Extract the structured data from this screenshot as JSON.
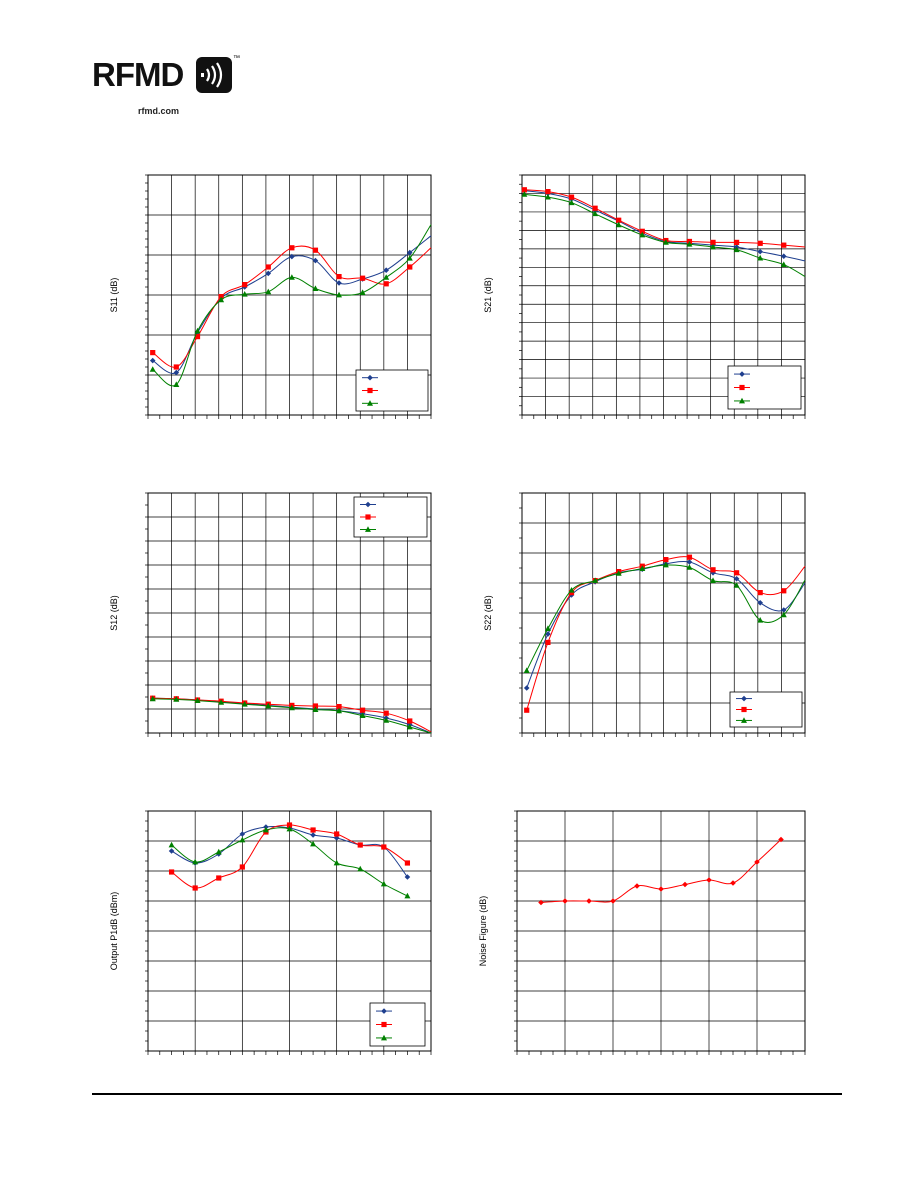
{
  "header": {
    "logo_text": "RFMD",
    "logo_url": "rfmd.com",
    "logo_tm": "™"
  },
  "colors": {
    "series_blue": "#1f3f8f",
    "series_red": "#ff0000",
    "series_green": "#008000",
    "grid": "#000000"
  },
  "chart_data": [
    {
      "id": "s11",
      "type": "line",
      "ylabel": "S11 (dB)",
      "grid": true,
      "legend": "bottom-right",
      "xlim": [
        0,
        12
      ],
      "ylim": [
        -30,
        0
      ],
      "series": [
        {
          "marker": "diamond",
          "color": "#1f3f8f",
          "x": [
            0.2,
            1.2,
            2.1,
            3.1,
            4.1,
            5.1,
            6.1,
            7.1,
            8.1,
            9.1,
            10.1,
            11.1,
            12
          ],
          "y": [
            -23.2,
            -24.7,
            -19.7,
            -15.4,
            -14.0,
            -12.3,
            -10.2,
            -10.7,
            -13.5,
            -13.0,
            -11.9,
            -9.7,
            -7.6
          ]
        },
        {
          "marker": "square",
          "color": "#ff0000",
          "x": [
            0.2,
            1.2,
            2.1,
            3.1,
            4.1,
            5.1,
            6.1,
            7.1,
            8.1,
            9.1,
            10.1,
            11.1,
            12
          ],
          "y": [
            -22.2,
            -24.0,
            -20.2,
            -15.2,
            -13.7,
            -11.5,
            -9.1,
            -9.4,
            -12.7,
            -12.9,
            -13.6,
            -11.5,
            -9.1
          ]
        },
        {
          "marker": "triangle",
          "color": "#008000",
          "x": [
            0.2,
            1.2,
            2.1,
            3.1,
            4.1,
            5.1,
            6.1,
            7.1,
            8.1,
            9.1,
            10.1,
            11.1,
            12
          ],
          "y": [
            -24.3,
            -26.2,
            -19.5,
            -15.6,
            -14.9,
            -14.6,
            -12.8,
            -14.2,
            -15.0,
            -14.7,
            -12.8,
            -10.4,
            -6.2
          ]
        }
      ]
    },
    {
      "id": "s21",
      "type": "line",
      "ylabel": "S21 (dB)",
      "grid": true,
      "legend": "bottom-right",
      "xlim": [
        0,
        12
      ],
      "ylim": [
        0,
        26
      ],
      "series": [
        {
          "marker": "diamond",
          "color": "#1f3f8f",
          "x": [
            0.1,
            1.1,
            2.1,
            3.1,
            4.1,
            5.1,
            6.1,
            7.1,
            8.1,
            9.1,
            10.1,
            11.1,
            12
          ],
          "y": [
            24.3,
            24.0,
            23.4,
            22.2,
            21.0,
            19.7,
            18.8,
            18.6,
            18.4,
            18.2,
            17.7,
            17.2,
            16.7
          ]
        },
        {
          "marker": "square",
          "color": "#ff0000",
          "x": [
            0.1,
            1.1,
            2.1,
            3.1,
            4.1,
            5.1,
            6.1,
            7.1,
            8.1,
            9.1,
            10.1,
            11.1,
            12
          ],
          "y": [
            24.4,
            24.2,
            23.6,
            22.4,
            21.1,
            19.9,
            18.9,
            18.8,
            18.7,
            18.7,
            18.6,
            18.4,
            18.2
          ]
        },
        {
          "marker": "triangle",
          "color": "#008000",
          "x": [
            0.1,
            1.1,
            2.1,
            3.1,
            4.1,
            5.1,
            6.1,
            7.1,
            8.1,
            9.1,
            10.1,
            11.1,
            12
          ],
          "y": [
            23.9,
            23.6,
            23.0,
            21.8,
            20.6,
            19.5,
            18.7,
            18.5,
            18.2,
            17.9,
            17.0,
            16.3,
            15.0
          ]
        }
      ]
    },
    {
      "id": "s12",
      "type": "line",
      "ylabel": "S12 (dB)",
      "grid": true,
      "legend": "top-right",
      "xlim": [
        0,
        12
      ],
      "ylim": [
        -40,
        0
      ],
      "series": [
        {
          "marker": "diamond",
          "color": "#1f3f8f",
          "x": [
            0.2,
            1.2,
            2.1,
            3.1,
            4.1,
            5.1,
            6.1,
            7.1,
            8.1,
            9.1,
            10.1,
            11.1,
            12
          ],
          "y": [
            -34.2,
            -34.3,
            -34.5,
            -34.8,
            -35.1,
            -35.4,
            -35.7,
            -36.0,
            -36.3,
            -36.8,
            -37.5,
            -38.6,
            -40.0
          ]
        },
        {
          "marker": "square",
          "color": "#ff0000",
          "x": [
            0.2,
            1.2,
            2.1,
            3.1,
            4.1,
            5.1,
            6.1,
            7.1,
            8.1,
            9.1,
            10.1,
            11.1,
            12
          ],
          "y": [
            -34.2,
            -34.3,
            -34.5,
            -34.7,
            -35.0,
            -35.2,
            -35.4,
            -35.5,
            -35.6,
            -36.2,
            -36.7,
            -38.0,
            -39.8
          ]
        },
        {
          "marker": "triangle",
          "color": "#008000",
          "x": [
            0.2,
            1.2,
            2.1,
            3.1,
            4.1,
            5.1,
            6.1,
            7.1,
            8.1,
            9.1,
            10.1,
            11.1,
            12
          ],
          "y": [
            -34.3,
            -34.4,
            -34.6,
            -34.9,
            -35.2,
            -35.5,
            -35.8,
            -36.1,
            -36.3,
            -37.1,
            -37.9,
            -39.0,
            -40.0
          ]
        }
      ]
    },
    {
      "id": "s22",
      "type": "line",
      "ylabel": "S22 (dB)",
      "grid": true,
      "legend": "bottom-right",
      "xlim": [
        0,
        12
      ],
      "ylim": [
        -40,
        0
      ],
      "series": [
        {
          "marker": "diamond",
          "color": "#1f3f8f",
          "x": [
            0.2,
            1.1,
            2.1,
            3.1,
            4.1,
            5.1,
            6.1,
            7.1,
            8.1,
            9.1,
            10.1,
            11.1,
            12
          ],
          "y": [
            -32.5,
            -23.5,
            -17.0,
            -14.8,
            -13.3,
            -12.7,
            -11.8,
            -11.5,
            -13.3,
            -14.3,
            -18.3,
            -19.5,
            -15.0
          ]
        },
        {
          "marker": "square",
          "color": "#ff0000",
          "x": [
            0.2,
            1.1,
            2.1,
            3.1,
            4.1,
            5.1,
            6.1,
            7.1,
            8.1,
            9.1,
            10.1,
            11.1,
            12
          ],
          "y": [
            -36.2,
            -24.9,
            -16.6,
            -14.6,
            -13.1,
            -12.2,
            -11.1,
            -10.7,
            -12.8,
            -13.3,
            -16.6,
            -16.3,
            -12.2
          ]
        },
        {
          "marker": "triangle",
          "color": "#008000",
          "x": [
            0.2,
            1.1,
            2.1,
            3.1,
            4.1,
            5.1,
            6.1,
            7.1,
            8.1,
            9.1,
            10.1,
            11.1,
            12
          ],
          "y": [
            -29.6,
            -22.6,
            -16.2,
            -14.6,
            -13.4,
            -12.6,
            -12.0,
            -12.4,
            -14.6,
            -15.4,
            -21.2,
            -20.3,
            -14.5
          ]
        }
      ]
    },
    {
      "id": "p1db",
      "type": "line",
      "ylabel": "Output P1dB (dBm)",
      "grid": true,
      "legend": "bottom-right",
      "xlim": [
        0,
        12
      ],
      "ylim": [
        0,
        24
      ],
      "series": [
        {
          "marker": "diamond",
          "color": "#1f3f8f",
          "x": [
            1,
            2,
            3,
            4,
            5,
            6,
            7,
            8,
            9,
            10,
            11
          ],
          "y": [
            20.0,
            18.8,
            19.7,
            21.7,
            22.4,
            22.3,
            21.6,
            21.3,
            20.6,
            20.4,
            17.4
          ]
        },
        {
          "marker": "square",
          "color": "#ff0000",
          "x": [
            1,
            2,
            3,
            4,
            5,
            6,
            7,
            8,
            9,
            10,
            11
          ],
          "y": [
            17.9,
            16.3,
            17.3,
            18.4,
            21.9,
            22.6,
            22.1,
            21.7,
            20.6,
            20.4,
            18.8
          ]
        },
        {
          "marker": "triangle",
          "color": "#008000",
          "x": [
            1,
            2,
            3,
            4,
            5,
            6,
            7,
            8,
            9,
            10,
            11
          ],
          "y": [
            20.6,
            18.9,
            19.9,
            21.1,
            22.1,
            22.2,
            20.7,
            18.8,
            18.2,
            16.7,
            15.5
          ]
        }
      ]
    },
    {
      "id": "nf",
      "type": "line",
      "ylabel": "Noise Figure (dB)",
      "grid": true,
      "legend": "none",
      "xlim": [
        0,
        12
      ],
      "ylim": [
        0,
        8
      ],
      "series": [
        {
          "marker": "diamond",
          "color": "#ff0000",
          "x": [
            1,
            2,
            3,
            4,
            5,
            6,
            7,
            8,
            9,
            10,
            11
          ],
          "y": [
            4.95,
            5.0,
            5.0,
            5.0,
            5.5,
            5.4,
            5.55,
            5.7,
            5.6,
            6.3,
            7.05
          ]
        }
      ]
    }
  ]
}
